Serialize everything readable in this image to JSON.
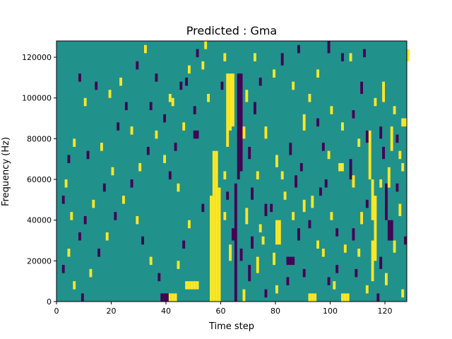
{
  "chart_data": {
    "type": "heatmap",
    "title": "Predicted : Gma",
    "xlabel": "Time step",
    "ylabel": "Frequency (Hz)",
    "xlim": [
      0,
      128
    ],
    "ylim": [
      0,
      128000
    ],
    "xticks": [
      0,
      20,
      40,
      60,
      80,
      100,
      120
    ],
    "yticks": [
      0,
      20000,
      40000,
      60000,
      80000,
      100000,
      120000
    ],
    "xtick_labels": [
      "0",
      "20",
      "40",
      "60",
      "80",
      "100",
      "120"
    ],
    "ytick_labels": [
      "0",
      "20000",
      "40000",
      "60000",
      "80000",
      "100000",
      "120000"
    ],
    "grid": false,
    "legend": "none",
    "colors": {
      "background": "#21918c",
      "high": "#fde725",
      "low": "#440154",
      "frame": "#000000"
    },
    "cell_height_hz": 2000,
    "background_value": 0,
    "note_values": {
      "high": 1,
      "low": -1
    },
    "cells": [
      [
        56,
        0,
        30000,
        1
      ],
      [
        57,
        0,
        30000,
        1
      ],
      [
        58,
        0,
        30000,
        1
      ],
      [
        59,
        0,
        30000,
        1
      ],
      [
        56,
        30000,
        52000,
        1
      ],
      [
        57,
        30000,
        52000,
        1
      ],
      [
        58,
        30000,
        56000,
        1
      ],
      [
        59,
        30000,
        56000,
        1
      ],
      [
        57,
        52000,
        74000,
        1
      ],
      [
        58,
        56000,
        74000,
        1
      ],
      [
        62,
        76000,
        112000,
        1
      ],
      [
        63,
        84000,
        112000,
        1
      ],
      [
        64,
        86000,
        112000,
        1
      ],
      [
        66,
        60000,
        112000,
        -1
      ],
      [
        67,
        64000,
        112000,
        -1
      ],
      [
        65,
        0,
        58000,
        -1
      ],
      [
        38,
        0,
        4000,
        -1
      ],
      [
        39,
        0,
        4000,
        -1
      ],
      [
        40,
        0,
        4000,
        -1
      ],
      [
        41,
        0,
        4000,
        1
      ],
      [
        42,
        0,
        4000,
        1
      ],
      [
        43,
        0,
        4000,
        1
      ],
      [
        47,
        6000,
        10000,
        1
      ],
      [
        48,
        6000,
        10000,
        1
      ],
      [
        49,
        6000,
        10000,
        1
      ],
      [
        50,
        6000,
        10000,
        1
      ],
      [
        51,
        6000,
        10000,
        1
      ],
      [
        92,
        0,
        4000,
        1
      ],
      [
        93,
        0,
        4000,
        1
      ],
      [
        94,
        0,
        4000,
        1
      ],
      [
        104,
        0,
        4000,
        1
      ],
      [
        105,
        0,
        4000,
        1
      ],
      [
        106,
        0,
        4000,
        1
      ],
      [
        80,
        28000,
        40000,
        1
      ],
      [
        81,
        28000,
        40000,
        1
      ],
      [
        127,
        86000,
        90000,
        1
      ],
      [
        126,
        86000,
        90000,
        1
      ],
      [
        128,
        118000,
        124000,
        1
      ],
      [
        84,
        18000,
        22000,
        -1
      ],
      [
        85,
        18000,
        22000,
        -1
      ],
      [
        86,
        18000,
        22000,
        -1
      ],
      [
        50,
        80000,
        84000,
        -1
      ],
      [
        51,
        80000,
        84000,
        -1
      ],
      [
        115,
        10000,
        30000,
        1
      ],
      [
        116,
        20000,
        52000,
        1
      ],
      [
        115,
        40000,
        60000,
        1
      ],
      [
        114,
        60000,
        84000,
        1
      ],
      [
        121,
        30000,
        40000,
        -1
      ],
      [
        122,
        30000,
        40000,
        -1
      ],
      [
        120,
        40000,
        58000,
        -1
      ],
      [
        121,
        56000,
        66000,
        1
      ],
      [
        122,
        74000,
        86000,
        1
      ],
      [
        119,
        98000,
        108000,
        1
      ],
      [
        111,
        102000,
        108000,
        -1
      ],
      [
        103,
        64000,
        68000,
        1
      ],
      [
        104,
        64000,
        68000,
        1
      ],
      [
        107,
        60000,
        70000,
        -1
      ],
      [
        108,
        56000,
        62000,
        1
      ],
      [
        98,
        56000,
        60000,
        -1
      ],
      [
        97,
        74000,
        78000,
        -1
      ],
      [
        99,
        70000,
        74000,
        1
      ],
      [
        90,
        84000,
        92000,
        1
      ],
      [
        92,
        98000,
        102000,
        1
      ],
      [
        95,
        110000,
        114000,
        1
      ],
      [
        99,
        122000,
        128000,
        -1
      ],
      [
        104,
        118000,
        122000,
        -1
      ],
      [
        107,
        118000,
        122000,
        1
      ],
      [
        112,
        120000,
        124000,
        -1
      ],
      [
        113,
        78000,
        84000,
        -1
      ],
      [
        118,
        80000,
        86000,
        -1
      ],
      [
        125,
        42000,
        48000,
        1
      ],
      [
        126,
        64000,
        68000,
        1
      ],
      [
        127,
        28000,
        32000,
        -1
      ],
      [
        126,
        2000,
        6000,
        1
      ],
      [
        120,
        8000,
        14000,
        1
      ],
      [
        118,
        16000,
        22000,
        -1
      ],
      [
        110,
        22000,
        26000,
        1
      ],
      [
        102,
        14000,
        18000,
        -1
      ],
      [
        99,
        8000,
        12000,
        -1
      ],
      [
        95,
        26000,
        30000,
        1
      ],
      [
        92,
        36000,
        40000,
        -1
      ],
      [
        90,
        44000,
        50000,
        1
      ],
      [
        87,
        56000,
        62000,
        -1
      ],
      [
        83,
        50000,
        54000,
        1
      ],
      [
        76,
        42000,
        48000,
        -1
      ],
      [
        74,
        34000,
        38000,
        1
      ],
      [
        71,
        26000,
        32000,
        -1
      ],
      [
        73,
        14000,
        22000,
        1
      ],
      [
        76,
        2000,
        6000,
        -1
      ],
      [
        80,
        4000,
        8000,
        1
      ],
      [
        84,
        8000,
        12000,
        -1
      ],
      [
        79,
        18000,
        24000,
        1
      ],
      [
        86,
        40000,
        44000,
        1
      ],
      [
        88,
        30000,
        36000,
        -1
      ],
      [
        80,
        66000,
        72000,
        1
      ],
      [
        85,
        72000,
        78000,
        -1
      ],
      [
        76,
        80000,
        86000,
        1
      ],
      [
        72,
        92000,
        98000,
        -1
      ],
      [
        69,
        98000,
        104000,
        1
      ],
      [
        74,
        106000,
        110000,
        -1
      ],
      [
        79,
        110000,
        114000,
        1
      ],
      [
        82,
        116000,
        122000,
        -1
      ],
      [
        86,
        104000,
        108000,
        1
      ],
      [
        88,
        122000,
        126000,
        -1
      ],
      [
        72,
        118000,
        122000,
        1
      ],
      [
        68,
        80000,
        86000,
        1
      ],
      [
        70,
        70000,
        76000,
        -1
      ],
      [
        53,
        114000,
        118000,
        1
      ],
      [
        47,
        106000,
        110000,
        -1
      ],
      [
        41,
        98000,
        102000,
        1
      ],
      [
        34,
        94000,
        98000,
        -1
      ],
      [
        27,
        82000,
        86000,
        1
      ],
      [
        22,
        84000,
        88000,
        -1
      ],
      [
        16,
        74000,
        78000,
        1
      ],
      [
        11,
        70000,
        74000,
        -1
      ],
      [
        6,
        76000,
        80000,
        1
      ],
      [
        4,
        68000,
        72000,
        -1
      ],
      [
        3,
        56000,
        60000,
        1
      ],
      [
        2,
        48000,
        52000,
        -1
      ],
      [
        5,
        40000,
        44000,
        1
      ],
      [
        8,
        30000,
        34000,
        -1
      ],
      [
        4,
        22000,
        26000,
        1
      ],
      [
        2,
        14000,
        18000,
        -1
      ],
      [
        6,
        6000,
        10000,
        1
      ],
      [
        9,
        0,
        4000,
        -1
      ],
      [
        12,
        12000,
        16000,
        1
      ],
      [
        15,
        22000,
        26000,
        -1
      ],
      [
        18,
        30000,
        34000,
        1
      ],
      [
        21,
        40000,
        44000,
        -1
      ],
      [
        24,
        48000,
        52000,
        1
      ],
      [
        27,
        56000,
        60000,
        -1
      ],
      [
        30,
        64000,
        68000,
        1
      ],
      [
        33,
        72000,
        76000,
        -1
      ],
      [
        36,
        80000,
        84000,
        1
      ],
      [
        39,
        88000,
        92000,
        -1
      ],
      [
        42,
        96000,
        100000,
        1
      ],
      [
        45,
        104000,
        108000,
        -1
      ],
      [
        48,
        112000,
        116000,
        1
      ],
      [
        51,
        120000,
        124000,
        -1
      ],
      [
        54,
        124000,
        128000,
        1
      ],
      [
        14,
        104000,
        108000,
        -1
      ],
      [
        10,
        96000,
        100000,
        1
      ],
      [
        8,
        108000,
        112000,
        -1
      ],
      [
        19,
        100000,
        104000,
        1
      ],
      [
        23,
        106000,
        110000,
        1
      ],
      [
        29,
        114000,
        118000,
        -1
      ],
      [
        32,
        122000,
        126000,
        1
      ],
      [
        36,
        108000,
        112000,
        -1
      ],
      [
        25,
        94000,
        98000,
        -1
      ],
      [
        20,
        62000,
        66000,
        1
      ],
      [
        17,
        54000,
        58000,
        -1
      ],
      [
        13,
        46000,
        50000,
        1
      ],
      [
        10,
        38000,
        42000,
        -1
      ],
      [
        29,
        38000,
        42000,
        1
      ],
      [
        31,
        28000,
        32000,
        -1
      ],
      [
        34,
        18000,
        22000,
        1
      ],
      [
        37,
        10000,
        14000,
        -1
      ],
      [
        44,
        16000,
        20000,
        1
      ],
      [
        46,
        26000,
        30000,
        -1
      ],
      [
        48,
        36000,
        40000,
        1
      ],
      [
        53,
        44000,
        48000,
        -1
      ],
      [
        44,
        54000,
        58000,
        1
      ],
      [
        41,
        60000,
        64000,
        -1
      ],
      [
        39,
        68000,
        72000,
        1
      ],
      [
        43,
        74000,
        78000,
        -1
      ],
      [
        46,
        84000,
        88000,
        1
      ],
      [
        50,
        92000,
        96000,
        -1
      ],
      [
        55,
        98000,
        102000,
        1
      ],
      [
        60,
        104000,
        108000,
        -1
      ],
      [
        61,
        118000,
        122000,
        1
      ],
      [
        63,
        20000,
        28000,
        1
      ],
      [
        64,
        30000,
        36000,
        -1
      ],
      [
        61,
        40000,
        44000,
        1
      ],
      [
        62,
        50000,
        54000,
        -1
      ],
      [
        61,
        60000,
        64000,
        1
      ],
      [
        70,
        10000,
        18000,
        -1
      ],
      [
        68,
        0,
        6000,
        1
      ],
      [
        69,
        38000,
        46000,
        1
      ],
      [
        71,
        50000,
        56000,
        -1
      ],
      [
        73,
        60000,
        64000,
        1
      ],
      [
        67,
        20000,
        26000,
        -1
      ],
      [
        75,
        28000,
        32000,
        1
      ],
      [
        78,
        44000,
        48000,
        -1
      ],
      [
        82,
        60000,
        64000,
        1
      ],
      [
        89,
        64000,
        68000,
        -1
      ],
      [
        93,
        46000,
        52000,
        1
      ],
      [
        96,
        52000,
        56000,
        -1
      ],
      [
        100,
        40000,
        44000,
        1
      ],
      [
        102,
        32000,
        36000,
        -1
      ],
      [
        105,
        24000,
        28000,
        1
      ],
      [
        108,
        30000,
        36000,
        -1
      ],
      [
        111,
        38000,
        44000,
        1
      ],
      [
        113,
        46000,
        50000,
        -1
      ],
      [
        118,
        56000,
        60000,
        1
      ],
      [
        124,
        54000,
        58000,
        -1
      ],
      [
        123,
        24000,
        30000,
        1
      ],
      [
        109,
        12000,
        16000,
        -1
      ],
      [
        113,
        4000,
        8000,
        1
      ],
      [
        117,
        0,
        4000,
        -1
      ],
      [
        97,
        22000,
        26000,
        1
      ],
      [
        101,
        6000,
        10000,
        1
      ],
      [
        90,
        12000,
        16000,
        -1
      ],
      [
        95,
        86000,
        90000,
        -1
      ],
      [
        100,
        92000,
        96000,
        1
      ],
      [
        104,
        84000,
        88000,
        1
      ],
      [
        108,
        90000,
        94000,
        -1
      ],
      [
        116,
        96000,
        100000,
        1
      ],
      [
        123,
        92000,
        96000,
        1
      ],
      [
        124,
        78000,
        82000,
        -1
      ],
      [
        125,
        70000,
        74000,
        1
      ],
      [
        119,
        70000,
        76000,
        -1
      ],
      [
        110,
        76000,
        80000,
        1
      ]
    ]
  }
}
